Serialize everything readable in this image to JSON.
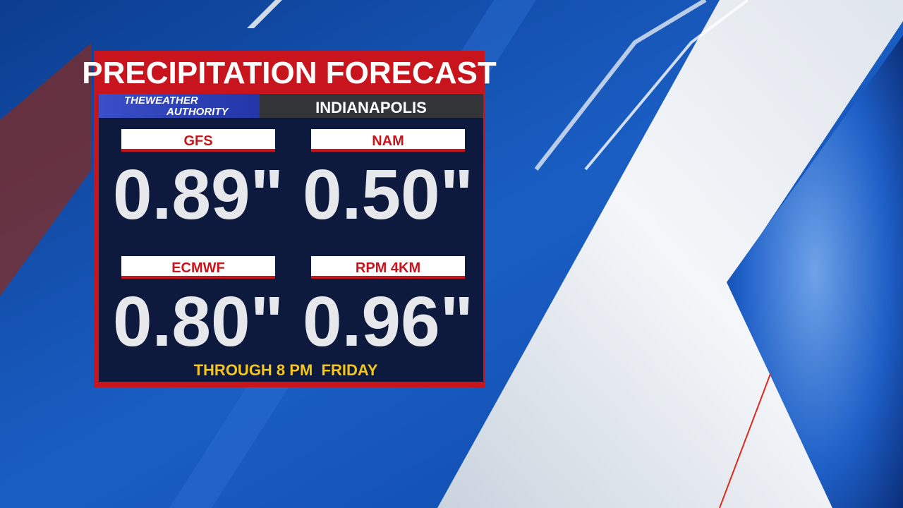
{
  "header": {
    "title": "PRECIPITATION FORECAST",
    "logo_line1": "THEWEATHER",
    "logo_line2": "AUTHORITY",
    "location": "INDIANAPOLIS"
  },
  "models": [
    {
      "name": "GFS",
      "amount": "0.89\""
    },
    {
      "name": "NAM",
      "amount": "0.50\""
    },
    {
      "name": "ECMWF",
      "amount": "0.80\""
    },
    {
      "name": "RPM 4KM",
      "amount": "0.96\""
    }
  ],
  "footer": "THROUGH 8 PM  FRIDAY"
}
